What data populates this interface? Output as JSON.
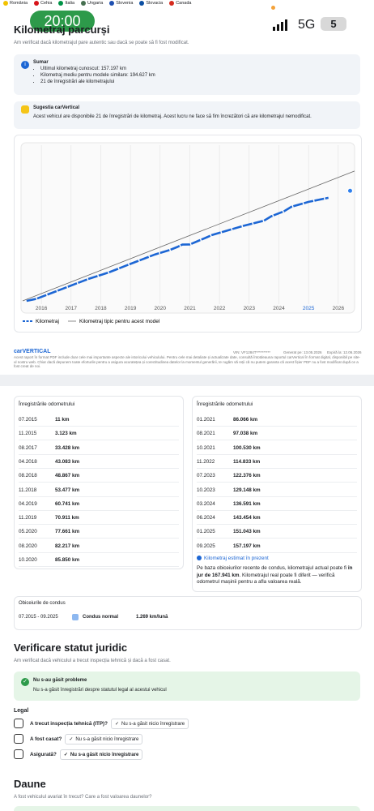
{
  "countries": [
    "România",
    "Cehia",
    "Italia",
    "Ungaria",
    "Slovenia",
    "Slovacia",
    "Canada"
  ],
  "status_bar": {
    "time": "20:00",
    "network": "5G",
    "battery": "5"
  },
  "mileage": {
    "title": "Kilometraj parcurși",
    "subtitle": "Am verificat dacă kilometrajul pare autentic sau dacă se poate să fi fost modificat.",
    "summary": {
      "title": "Sumar",
      "items": [
        "Ultimul kilometraj cunoscut: 157.197 km",
        "Kilometraj mediu pentru modele similare: 194.627 km",
        "21 de înregistrări ale kilometrajului"
      ]
    },
    "suggestion": {
      "title": "Sugestia carVertical",
      "text": "Acest vehicul are disponibile 21 de înregistrări de kilometraj. Acest lucru ne face să fim încrezători că are kilometrajul nemodificat."
    },
    "chart": {
      "type": "line",
      "xlim": [
        2015.37,
        2026.55
      ],
      "ylim": [
        0,
        235000
      ],
      "xticks": [
        2016,
        2017,
        2018,
        2019,
        2020,
        2021,
        2022,
        2023,
        2024,
        2025,
        2026
      ],
      "highlight_xtick": 2025,
      "grid": true,
      "series": [
        {
          "name": "Kilometraj",
          "color": "#1c66d4",
          "x": [
            2015.5,
            2015.83,
            2017.58,
            2018.25,
            2018.58,
            2018.83,
            2019.25,
            2019.83,
            2020.33,
            2020.58,
            2020.75,
            2021.0,
            2021.58,
            2021.75,
            2022.83,
            2023.5,
            2023.75,
            2024.17,
            2024.42,
            2025.0,
            2025.67
          ],
          "values": [
            11,
            3123,
            33428,
            43083,
            48867,
            53477,
            60741,
            70911,
            77661,
            82217,
            85850,
            86066,
            97038,
            100530,
            114833,
            122376,
            129148,
            136591,
            143454,
            151043,
            157197
          ]
        },
        {
          "name": "Kilometraj tipic pentru acest model",
          "color": "#666666",
          "x": [
            2015.37,
            2026.55
          ],
          "values": [
            0,
            198000
          ]
        }
      ],
      "estimate": {
        "x": 2026.4,
        "value": 167941,
        "color": "#2f80ed"
      }
    }
  },
  "report_footer": {
    "brand": "carVERTICAL",
    "vin": "VIN: VF1284T**********",
    "generated": "Generat pe: 13.05.2026",
    "expires": "Expiră la: 12.06.2026",
    "disclaimer": "Acest raport în format PDF include doar cele mai importante aspecte ale istoricului vehiculului. Pentru cele mai detaliate și actualizate date, consultă întotdeauna raportul carVertical în format digital, disponibil pe site-ul nostru web. Chiar dacă depunem toate eforturile pentru a asigura acuratețea și corectitudinea datelor la momentul generării, te rugăm să reții că nu putem garanta că acest fișier PDF nu a fost modificat după ce a fost creat de noi."
  },
  "odometer": {
    "title": "Înregistrările odometrului",
    "left": [
      [
        "07.2015",
        "11 km"
      ],
      [
        "11.2015",
        "3.123 km"
      ],
      [
        "08.2017",
        "33.428 km"
      ],
      [
        "04.2018",
        "43.083 km"
      ],
      [
        "08.2018",
        "48.867 km"
      ],
      [
        "11.2018",
        "53.477 km"
      ],
      [
        "04.2019",
        "60.741 km"
      ],
      [
        "11.2019",
        "70.911 km"
      ],
      [
        "05.2020",
        "77.661 km"
      ],
      [
        "08.2020",
        "82.217 km"
      ],
      [
        "10.2020",
        "85.850 km"
      ]
    ],
    "right": [
      [
        "01.2021",
        "86.066 km"
      ],
      [
        "08.2021",
        "97.038 km"
      ],
      [
        "10.2021",
        "100.530 km"
      ],
      [
        "11.2022",
        "114.833 km"
      ],
      [
        "07.2023",
        "122.376 km"
      ],
      [
        "10.2023",
        "129.148 km"
      ],
      [
        "03.2024",
        "136.591 km"
      ],
      [
        "06.2024",
        "143.454 km"
      ],
      [
        "01.2025",
        "151.043 km"
      ],
      [
        "09.2025",
        "157.197 km"
      ]
    ],
    "estimate_link": "Kilometraj estimat în prezent",
    "estimate_text": [
      "Pe baza obiceiurilor recente de condus, kilometrajul actual poate fi ",
      "în jur de 167.941 km",
      ". Kilometrajul real poate fi diferit — verifică odometrul mașinii pentru a afla valoarea reală."
    ]
  },
  "driving": {
    "title": "Obiceiurile de condus",
    "period": "07.2015 - 09.2025",
    "style": "Condus normal",
    "rate": "1.269 km/lună"
  },
  "legal": {
    "title": "Verificare statut juridic",
    "subtitle": "Am verificat dacă vehiculul a trecut inspecția tehnică și dacă a fost casat.",
    "ok_title": "Nu s-au găsit probleme",
    "ok_text": "Nu s-a găsit înregistrări despre statutul legal al acestui vehicul",
    "section": "Legal",
    "rows": [
      [
        "A trecut inspecția tehnică (ITP)?",
        "Nu s-a găsit nicio înregistrare"
      ],
      [
        "A fost casat?",
        "Nu s-a găsit nicio înregistrare"
      ],
      [
        "Asigurată?",
        "Nu s-a găsit nicio înregistrare"
      ]
    ]
  },
  "damage": {
    "title": "Daune",
    "subtitle": "A fost vehiculul avariat în trecut? Care a fost valoarea daunelor?"
  }
}
